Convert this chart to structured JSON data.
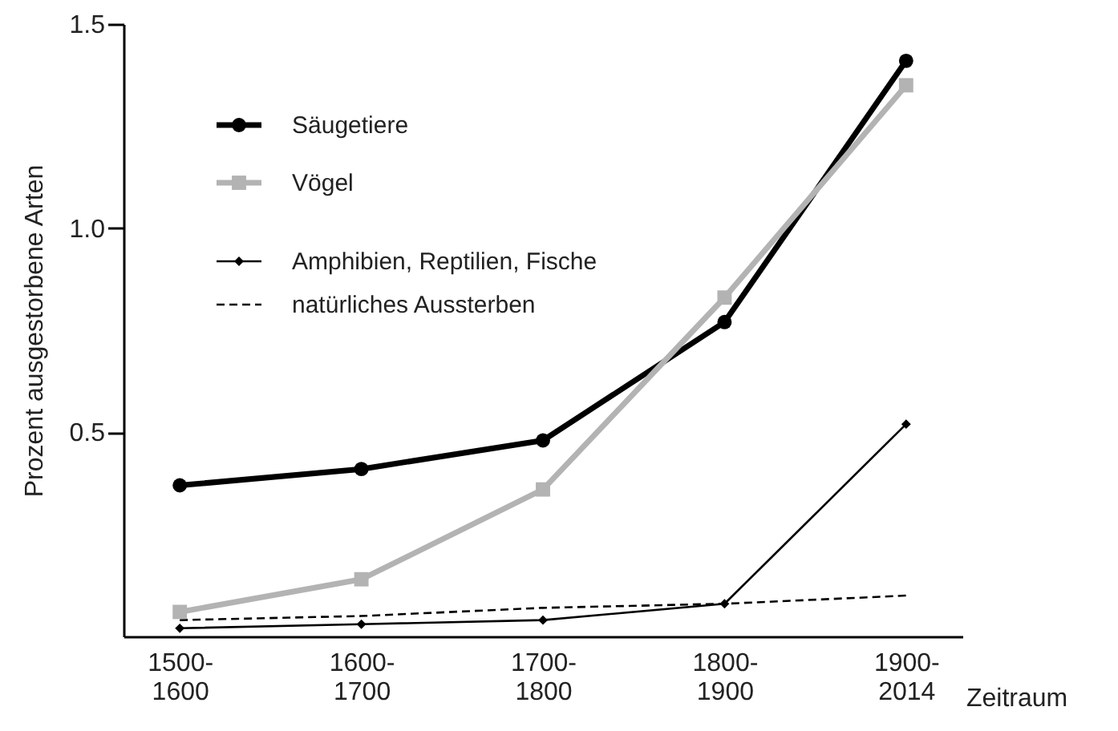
{
  "chart_data": {
    "type": "line",
    "ylabel": "Prozent ausgestorbene Arten",
    "xlabel": "Zeitraum",
    "categories": [
      "1500-1600",
      "1600-1700",
      "1700-1800",
      "1800-1900",
      "1900-2014"
    ],
    "ylim": [
      0,
      1.5
    ],
    "yticks": [
      {
        "value": 0.5,
        "label": "0.5"
      },
      {
        "value": 1,
        "label": "1.0"
      },
      {
        "value": 1.5,
        "label": "1.5"
      }
    ],
    "grid": false,
    "legend": "top left",
    "series": [
      {
        "name": "Säugetiere",
        "color": "#000000",
        "marker": "circle",
        "line_style": "solid",
        "values": [
          0.37,
          0.41,
          0.48,
          0.77,
          1.41
        ]
      },
      {
        "name": "Vögel",
        "color": "#b3b3b3",
        "marker": "square",
        "line_style": "solid",
        "values": [
          0.06,
          0.14,
          0.36,
          0.83,
          1.35
        ]
      },
      {
        "name": "Amphibien, Reptilien, Fische",
        "color": "#000000",
        "marker": "diamond",
        "line_style": "solid",
        "values": [
          0.02,
          0.03,
          0.04,
          0.08,
          0.52
        ]
      },
      {
        "name": "natürliches Aussterben",
        "color": "#000000",
        "marker": "none",
        "line_style": "dashed",
        "values": [
          0.04,
          0.05,
          0.07,
          0.08,
          0.1
        ]
      }
    ]
  }
}
